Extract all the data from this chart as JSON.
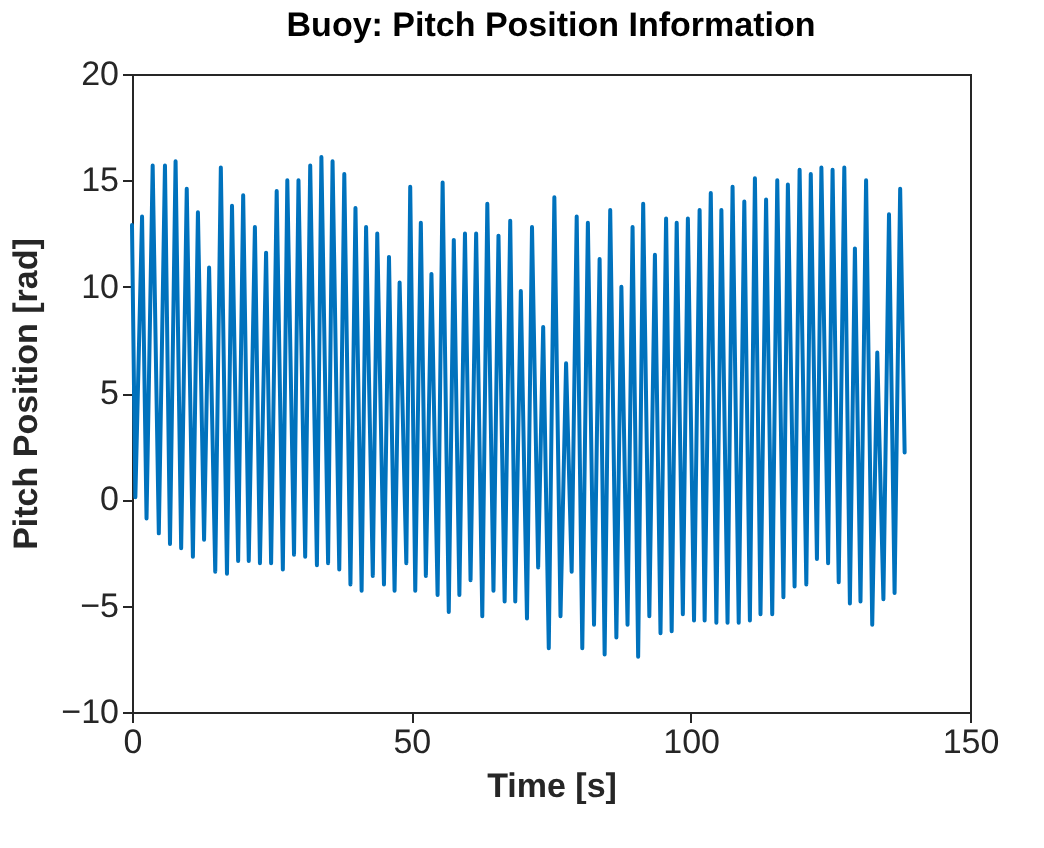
{
  "chart_data": {
    "type": "line",
    "title": "Buoy: Pitch Position Information",
    "xlabel": "Time [s]",
    "ylabel": "Pitch Position [rad]",
    "xlim": [
      0,
      150
    ],
    "xticks": [
      0,
      50,
      100,
      150
    ],
    "ylim": [
      -10,
      20
    ],
    "yticks": [
      -10,
      -5,
      0,
      5,
      10,
      15,
      20
    ],
    "marker": "none",
    "line_style": "solid",
    "series": [
      {
        "color": "#0072bd",
        "x": [
          0,
          0.6,
          1.8,
          2.6,
          3.7,
          4.8,
          5.9,
          6.8,
          7.8,
          8.8,
          9.8,
          10.9,
          11.8,
          12.9,
          13.8,
          14.9,
          15.9,
          17.0,
          17.9,
          19.0,
          19.9,
          20.9,
          22.0,
          22.9,
          24.0,
          24.9,
          25.9,
          27.0,
          27.8,
          29.0,
          29.8,
          31.0,
          31.9,
          33.1,
          33.9,
          35.1,
          35.9,
          37.1,
          38.0,
          39.1,
          40.0,
          41.1,
          41.9,
          43.1,
          43.9,
          45.1,
          46.0,
          47.0,
          47.9,
          49.1,
          49.8,
          50.7,
          51.7,
          52.6,
          53.6,
          54.7,
          55.6,
          56.7,
          57.6,
          58.6,
          59.6,
          60.6,
          61.6,
          62.7,
          63.6,
          64.7,
          65.6,
          66.7,
          67.7,
          68.6,
          69.6,
          70.7,
          71.6,
          72.7,
          73.6,
          74.6,
          75.6,
          76.7,
          77.7,
          78.7,
          79.6,
          80.6,
          81.6,
          82.7,
          83.7,
          84.6,
          85.6,
          86.7,
          87.6,
          88.7,
          89.6,
          90.6,
          91.5,
          92.6,
          93.6,
          94.6,
          95.6,
          96.6,
          97.5,
          98.6,
          99.5,
          100.6,
          101.6,
          102.5,
          103.6,
          104.6,
          105.5,
          106.6,
          107.5,
          108.6,
          109.6,
          110.6,
          111.5,
          112.5,
          113.5,
          114.6,
          115.5,
          116.6,
          117.4,
          118.6,
          119.5,
          120.7,
          121.5,
          122.6,
          123.4,
          124.6,
          125.4,
          126.5,
          127.5,
          128.5,
          129.4,
          130.4,
          131.4,
          132.5,
          133.4,
          134.5,
          135.5,
          136.5,
          137.5,
          138.3
        ],
        "values": [
          12.9,
          0.1,
          13.3,
          -0.9,
          15.7,
          -1.6,
          15.7,
          -2.1,
          15.9,
          -2.3,
          14.6,
          -2.7,
          13.5,
          -1.9,
          10.9,
          -3.4,
          15.6,
          -3.5,
          13.8,
          -2.9,
          14.3,
          -2.9,
          12.8,
          -3.0,
          11.6,
          -3.0,
          14.5,
          -3.3,
          15.0,
          -2.6,
          15.0,
          -2.7,
          15.7,
          -3.1,
          16.1,
          -3.0,
          15.9,
          -3.3,
          15.3,
          -4.0,
          13.7,
          -4.3,
          12.8,
          -3.6,
          12.5,
          -4.0,
          11.4,
          -4.3,
          10.2,
          -3.0,
          14.7,
          -4.3,
          13.0,
          -3.6,
          10.6,
          -4.5,
          14.9,
          -5.3,
          12.2,
          -4.5,
          12.5,
          -3.8,
          12.5,
          -5.5,
          13.9,
          -4.3,
          12.4,
          -4.8,
          13.1,
          -4.8,
          9.8,
          -5.6,
          12.8,
          -3.2,
          8.1,
          -7.0,
          14.2,
          -5.5,
          6.4,
          -3.4,
          13.3,
          -7.0,
          13.0,
          -5.9,
          11.3,
          -7.3,
          13.6,
          -6.5,
          10.0,
          -5.9,
          12.8,
          -7.4,
          13.9,
          -5.5,
          11.5,
          -6.3,
          13.2,
          -6.2,
          13.0,
          -5.4,
          13.2,
          -5.7,
          13.6,
          -5.7,
          14.4,
          -5.8,
          13.6,
          -5.8,
          14.7,
          -5.8,
          14.0,
          -5.7,
          15.1,
          -5.4,
          14.1,
          -5.4,
          15.0,
          -4.6,
          14.8,
          -4.1,
          15.5,
          -4.0,
          15.3,
          -2.8,
          15.6,
          -3.0,
          15.5,
          -3.9,
          15.6,
          -4.9,
          11.8,
          -4.8,
          15.0,
          -5.9,
          6.9,
          -4.7,
          13.4,
          -4.4,
          14.6,
          2.2
        ]
      }
    ]
  }
}
